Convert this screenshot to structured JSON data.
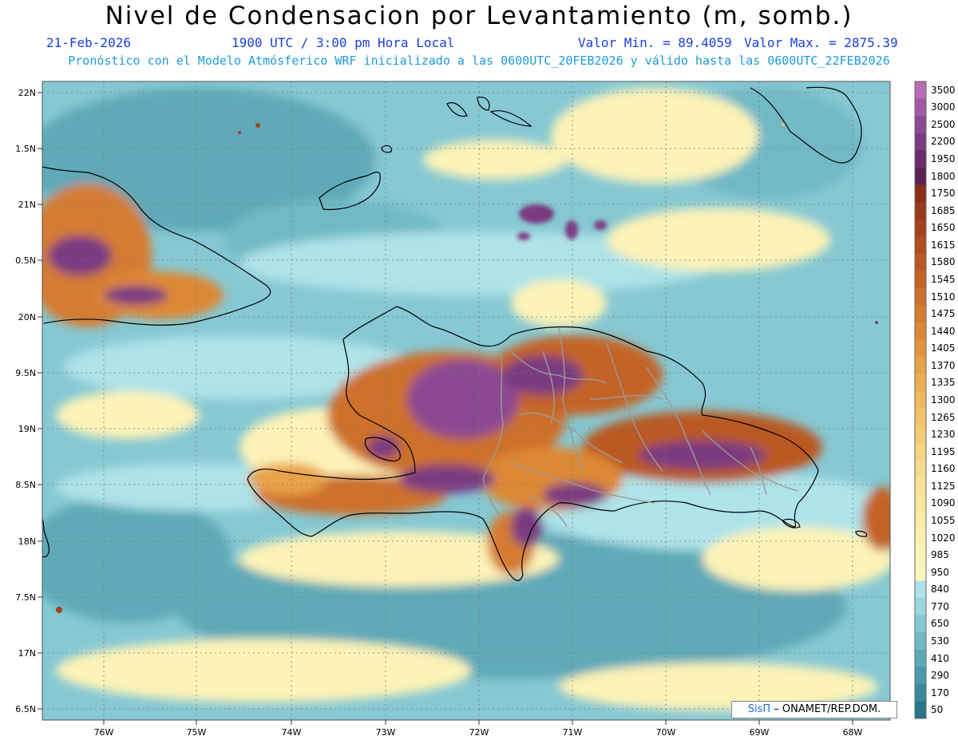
{
  "header": {
    "title": "Nivel de Condensacion por Levantamiento (m, somb.)",
    "date": "21-Feb-2026",
    "time": "1900 UTC / 3:00 pm Hora Local",
    "valmin": "Valor Min. = 89.4059",
    "valmax": "Valor Max. = 2875.39",
    "model": "Pronóstico con el Modelo Atmósferico WRF inicializado a las 0600UTC_20FEB2026 y válido hasta las  0600UTC_22FEB2026"
  },
  "axes": {
    "lat_labels": [
      "22N",
      "1.5N",
      "21N",
      "0.5N",
      "20N",
      "9.5N",
      "19N",
      "8.5N",
      "18N",
      "7.5N",
      "17N",
      "6.5N"
    ],
    "lon_labels": [
      "76W",
      "75W",
      "74W",
      "73W",
      "72W",
      "71W",
      "70W",
      "69W",
      "68W"
    ]
  },
  "colorbar": {
    "levels": [
      "3500",
      "3000",
      "2500",
      "2200",
      "1950",
      "1800",
      "1750",
      "1685",
      "1650",
      "1615",
      "1580",
      "1545",
      "1510",
      "1475",
      "1440",
      "1405",
      "1370",
      "1335",
      "1300",
      "1265",
      "1230",
      "1195",
      "1160",
      "1125",
      "1090",
      "1055",
      "1020",
      "985",
      "950",
      "840",
      "770",
      "650",
      "530",
      "410",
      "290",
      "170",
      "50"
    ],
    "colors": [
      "#b96bb6",
      "#a35aa6",
      "#8c4a92",
      "#7a3b80",
      "#6a2e6c",
      "#5b2255",
      "#8a2f1c",
      "#98391d",
      "#a5431f",
      "#b04d21",
      "#ba5824",
      "#c46427",
      "#cd702b",
      "#d57c30",
      "#dd8836",
      "#e3953e",
      "#e8a247",
      "#ecae52",
      "#efb95d",
      "#f2c369",
      "#f4cc75",
      "#f6d481",
      "#f7db8c",
      "#f9e296",
      "#fae79f",
      "#fbeca8",
      "#fcf0b0",
      "#fdf3b7",
      "#fdf5bd",
      "#aee3e8",
      "#9ad6de",
      "#86c8d3",
      "#72b9c6",
      "#5ea9b8",
      "#4b99aa",
      "#39889b",
      "#287689"
    ]
  },
  "credit": {
    "brand": "SisΠ",
    "org": " – ONAMET/REP.DOM."
  }
}
